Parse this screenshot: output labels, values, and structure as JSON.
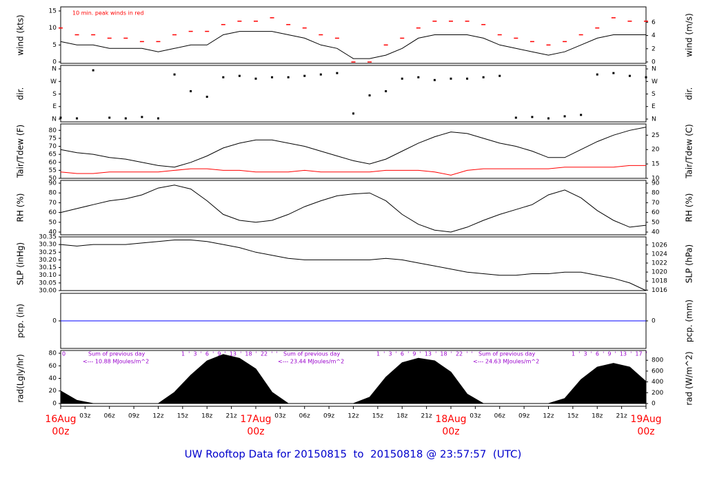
{
  "chart_data": [
    {
      "type": "line",
      "ylabel": "wind (kts)",
      "y2label": "wind (m/s)",
      "annotation": "10 min. peak winds in red",
      "xlim": [
        0,
        72
      ],
      "x": [
        0,
        2,
        4,
        6,
        8,
        10,
        12,
        14,
        16,
        18,
        20,
        22,
        24,
        26,
        28,
        30,
        32,
        34,
        36,
        38,
        40,
        42,
        44,
        46,
        48,
        50,
        52,
        54,
        56,
        58,
        60,
        62,
        64,
        66,
        68,
        70,
        72
      ],
      "ylim": [
        -0.4,
        16.2
      ],
      "yticks": [
        0,
        5,
        10,
        15
      ],
      "y2lim": [
        -0.21,
        8.33
      ],
      "y2ticks": [
        0,
        2,
        4,
        6
      ],
      "series": [
        {
          "color": "#000000",
          "mark": "line",
          "values": [
            6,
            5,
            5,
            4,
            4,
            4,
            3,
            4,
            5,
            5,
            8,
            9,
            9,
            9,
            8,
            7,
            5,
            4,
            1,
            1,
            2,
            4,
            7,
            8,
            8,
            8,
            7,
            5,
            4,
            3,
            2,
            3,
            5,
            7,
            8,
            8,
            8
          ]
        },
        {
          "color": "#ff0000",
          "mark": "dash",
          "values": [
            10,
            8,
            8,
            7,
            7,
            6,
            6,
            8,
            9,
            9,
            11,
            12,
            12,
            13,
            11,
            10,
            8,
            7,
            0,
            0,
            5,
            7,
            10,
            12,
            12,
            12,
            11,
            8,
            7,
            6,
            5,
            6,
            8,
            10,
            13,
            12,
            12
          ]
        }
      ]
    },
    {
      "type": "scatter",
      "ylabel": "dir.",
      "y2label": "dir.",
      "xlim": [
        0,
        72
      ],
      "x": [
        0,
        2,
        4,
        6,
        8,
        10,
        12,
        14,
        16,
        18,
        20,
        22,
        24,
        26,
        28,
        30,
        32,
        34,
        36,
        38,
        40,
        42,
        44,
        46,
        48,
        50,
        52,
        54,
        56,
        58,
        60,
        62,
        64,
        66,
        68,
        70,
        72
      ],
      "ylim": [
        -20,
        385
      ],
      "yticks": [
        {
          "value": 0,
          "label": "N"
        },
        {
          "value": 90,
          "label": "E"
        },
        {
          "value": 180,
          "label": "S"
        },
        {
          "value": 270,
          "label": "W"
        },
        {
          "value": 360,
          "label": "N"
        }
      ],
      "y2lim": [
        -20,
        385
      ],
      "y2ticks": [
        {
          "value": 0,
          "label": "N"
        },
        {
          "value": 90,
          "label": "E"
        },
        {
          "value": 180,
          "label": "S"
        },
        {
          "value": 270,
          "label": "W"
        },
        {
          "value": 360,
          "label": "N"
        }
      ],
      "series": [
        {
          "color": "#000000",
          "mark": "dot",
          "values": [
            10,
            5,
            350,
            10,
            5,
            15,
            5,
            320,
            200,
            160,
            300,
            310,
            290,
            300,
            300,
            310,
            320,
            330,
            40,
            170,
            200,
            290,
            300,
            280,
            290,
            290,
            300,
            310,
            10,
            15,
            5,
            20,
            30,
            320,
            330,
            310,
            300
          ]
        }
      ]
    },
    {
      "type": "line",
      "ylabel": "Tair/Tdew (F)",
      "y2label": "Tair/Tdew (C)",
      "xlim": [
        0,
        72
      ],
      "x": [
        0,
        2,
        4,
        6,
        8,
        10,
        12,
        14,
        16,
        18,
        20,
        22,
        24,
        26,
        28,
        30,
        32,
        34,
        36,
        38,
        40,
        42,
        44,
        46,
        48,
        50,
        52,
        54,
        56,
        58,
        60,
        62,
        64,
        66,
        68,
        70,
        72
      ],
      "ylim": [
        50,
        84
      ],
      "yticks": [
        50,
        55,
        60,
        65,
        70,
        75,
        80
      ],
      "y2lim": [
        10,
        28.9
      ],
      "y2ticks": [
        10,
        15,
        20,
        25
      ],
      "series": [
        {
          "color": "#000000",
          "mark": "line",
          "values": [
            68,
            66,
            65,
            63,
            62,
            60,
            58,
            57,
            60,
            64,
            69,
            72,
            74,
            74,
            72,
            70,
            67,
            64,
            61,
            59,
            62,
            67,
            72,
            76,
            79,
            78,
            75,
            72,
            70,
            67,
            63,
            63,
            68,
            73,
            77,
            80,
            82
          ]
        },
        {
          "color": "#ff0000",
          "mark": "line",
          "values": [
            54,
            53,
            53,
            54,
            54,
            54,
            54,
            55,
            56,
            56,
            55,
            55,
            54,
            54,
            54,
            55,
            54,
            54,
            54,
            54,
            55,
            55,
            55,
            54,
            52,
            55,
            56,
            56,
            56,
            56,
            56,
            57,
            57,
            57,
            57,
            58,
            58
          ]
        }
      ]
    },
    {
      "type": "line",
      "ylabel": "RH (%)",
      "y2label": "RH (%)",
      "xlim": [
        0,
        72
      ],
      "x": [
        0,
        2,
        4,
        6,
        8,
        10,
        12,
        14,
        16,
        18,
        20,
        22,
        24,
        26,
        28,
        30,
        32,
        34,
        36,
        38,
        40,
        42,
        44,
        46,
        48,
        50,
        52,
        54,
        56,
        58,
        60,
        62,
        64,
        66,
        68,
        70,
        72
      ],
      "ylim": [
        37.2,
        92.8
      ],
      "yticks": [
        40,
        50,
        60,
        70,
        80,
        90
      ],
      "y2lim": [
        37.2,
        92.8
      ],
      "y2ticks": [
        40,
        50,
        60,
        70,
        80,
        90
      ],
      "series": [
        {
          "color": "#000000",
          "mark": "line",
          "values": [
            60,
            64,
            68,
            72,
            74,
            78,
            85,
            88,
            84,
            72,
            58,
            52,
            50,
            52,
            58,
            66,
            72,
            77,
            79,
            80,
            72,
            58,
            48,
            42,
            40,
            45,
            52,
            58,
            63,
            68,
            78,
            83,
            75,
            62,
            52,
            45,
            47
          ]
        }
      ]
    },
    {
      "type": "line",
      "ylabel": "SLP (inHg)",
      "y2label": "SLP (hPa)",
      "xlim": [
        0,
        72
      ],
      "x": [
        0,
        2,
        4,
        6,
        8,
        10,
        12,
        14,
        16,
        18,
        20,
        22,
        24,
        26,
        28,
        30,
        32,
        34,
        36,
        38,
        40,
        42,
        44,
        46,
        48,
        50,
        52,
        54,
        56,
        58,
        60,
        62,
        64,
        66,
        68,
        70,
        72
      ],
      "ylim": [
        30.0,
        30.35
      ],
      "yticks": [
        {
          "value": 30.0,
          "label": "30.00"
        },
        30.05,
        {
          "value": 30.1,
          "label": "30.10"
        },
        30.15,
        {
          "value": 30.2,
          "label": "30.20"
        },
        30.25,
        {
          "value": 30.3,
          "label": "30.30"
        },
        30.35
      ],
      "y2lim": [
        1015.9,
        1027.8
      ],
      "y2ticks": [
        1016,
        1018,
        1020,
        1022,
        1024,
        1026
      ],
      "series": [
        {
          "color": "#000000",
          "mark": "line",
          "values": [
            30.3,
            30.29,
            30.3,
            30.3,
            30.3,
            30.31,
            30.32,
            30.33,
            30.33,
            30.32,
            30.3,
            30.28,
            30.25,
            30.23,
            30.21,
            30.2,
            30.2,
            30.2,
            30.2,
            30.2,
            30.21,
            30.2,
            30.18,
            30.16,
            30.14,
            30.12,
            30.11,
            30.1,
            30.1,
            30.11,
            30.11,
            30.12,
            30.12,
            30.1,
            30.08,
            30.05,
            30.0
          ]
        }
      ]
    },
    {
      "type": "line",
      "ylabel": "pcp. (in)",
      "y2label": "pcp. (mm)",
      "xlim": [
        0,
        72
      ],
      "x": [
        0,
        2,
        4,
        6,
        8,
        10,
        12,
        14,
        16,
        18,
        20,
        22,
        24,
        26,
        28,
        30,
        32,
        34,
        36,
        38,
        40,
        42,
        44,
        46,
        48,
        50,
        52,
        54,
        56,
        58,
        60,
        62,
        64,
        66,
        68,
        70,
        72
      ],
      "ylim": [
        -1,
        1
      ],
      "yticks": [
        0
      ],
      "y2lim": [
        -1,
        1
      ],
      "y2ticks": [
        0
      ],
      "series": [
        {
          "color": "#0000ff",
          "mark": "line",
          "values": [
            0,
            0,
            0,
            0,
            0,
            0,
            0,
            0,
            0,
            0,
            0,
            0,
            0,
            0,
            0,
            0,
            0,
            0,
            0,
            0,
            0,
            0,
            0,
            0,
            0,
            0,
            0,
            0,
            0,
            0,
            0,
            0,
            0,
            0,
            0,
            0,
            0
          ]
        }
      ]
    },
    {
      "type": "area",
      "ylabel": "rad(Lgly/hr)",
      "y2label": "rad (W/m^2)",
      "xlim": [
        0,
        72
      ],
      "x": [
        0,
        2,
        4,
        6,
        8,
        10,
        12,
        14,
        16,
        18,
        20,
        22,
        24,
        26,
        28,
        30,
        32,
        34,
        36,
        38,
        40,
        42,
        44,
        46,
        48,
        50,
        52,
        54,
        56,
        58,
        60,
        62,
        64,
        66,
        68,
        70,
        72
      ],
      "ylim": [
        -4.4,
        84.4
      ],
      "yticks": [
        0,
        20,
        40,
        60,
        80
      ],
      "y2lim": [
        -51,
        981
      ],
      "y2ticks": [
        0,
        200,
        400,
        600,
        800
      ],
      "start_mark": "0",
      "notes": [
        {
          "sum": "Sum of previous day",
          "total": "<--- 10.88 MJoules/m^2",
          "hours": "1  '  3  '  6  '  9  '  13  '  18  '  22  '  '"
        },
        {
          "sum": "Sum of previous day",
          "total": "<--- 23.44 MJoules/m^2",
          "hours": "1  '  3  '  6  '  9  '  13  '  18  '  22  '  '"
        },
        {
          "sum": "Sum of previous day",
          "total": "<--- 24.63 MJoules/m^2",
          "hours": "1  '  3  '  6  '  9  '  13  '  17  '"
        }
      ],
      "xticks": [
        {
          "value": 0,
          "label": "16Aug",
          "sublabel": "00z"
        },
        {
          "value": 3,
          "label": "03z"
        },
        {
          "value": 6,
          "label": "06z"
        },
        {
          "value": 9,
          "label": "09z"
        },
        {
          "value": 12,
          "label": "12z"
        },
        {
          "value": 15,
          "label": "15z"
        },
        {
          "value": 18,
          "label": "18z"
        },
        {
          "value": 21,
          "label": "21z"
        },
        {
          "value": 24,
          "label": "17Aug",
          "sublabel": "00z"
        },
        {
          "value": 27,
          "label": "03z"
        },
        {
          "value": 30,
          "label": "06z"
        },
        {
          "value": 33,
          "label": "09z"
        },
        {
          "value": 36,
          "label": "12z"
        },
        {
          "value": 39,
          "label": "15z"
        },
        {
          "value": 42,
          "label": "18z"
        },
        {
          "value": 45,
          "label": "21z"
        },
        {
          "value": 48,
          "label": "18Aug",
          "sublabel": "00z"
        },
        {
          "value": 51,
          "label": "03z"
        },
        {
          "value": 54,
          "label": "06z"
        },
        {
          "value": 57,
          "label": "09z"
        },
        {
          "value": 60,
          "label": "12z"
        },
        {
          "value": 63,
          "label": "15z"
        },
        {
          "value": 66,
          "label": "18z"
        },
        {
          "value": 69,
          "label": "21z"
        },
        {
          "value": 72,
          "label": "19Aug",
          "sublabel": "00z"
        }
      ],
      "series": [
        {
          "color": "#000000",
          "mark": "area",
          "values": [
            20,
            5,
            0,
            0,
            0,
            0,
            0,
            18,
            45,
            68,
            78,
            72,
            55,
            18,
            0,
            0,
            0,
            0,
            0,
            10,
            42,
            65,
            72,
            68,
            50,
            15,
            0,
            0,
            0,
            0,
            0,
            8,
            38,
            58,
            64,
            58,
            35
          ]
        }
      ]
    }
  ],
  "footer": {
    "title": "UW Rooftop Data for 20150815  to  20150818 @ 23:57:57  (UTC)"
  }
}
